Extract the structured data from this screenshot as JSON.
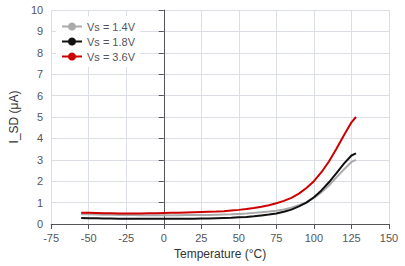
{
  "chart_data": {
    "type": "line",
    "xlabel": "Temperature (°C)",
    "ylabel": "I_SD (μA)",
    "xlim": [
      -75,
      150
    ],
    "ylim": [
      0,
      10
    ],
    "xticks": [
      -75,
      -50,
      -25,
      0,
      25,
      50,
      75,
      100,
      125,
      150
    ],
    "yticks": [
      0,
      1,
      2,
      3,
      4,
      5,
      6,
      7,
      8,
      9,
      10
    ],
    "x": [
      -55,
      -50,
      -45,
      -40,
      -35,
      -30,
      -25,
      -20,
      -15,
      -10,
      -5,
      0,
      5,
      10,
      15,
      20,
      25,
      30,
      35,
      40,
      45,
      50,
      55,
      60,
      65,
      70,
      75,
      80,
      85,
      90,
      95,
      100,
      105,
      110,
      115,
      120,
      125,
      128
    ],
    "series": [
      {
        "name": "Vs = 1.4V",
        "color": "#aaaaaa",
        "values": [
          0.46,
          0.45,
          0.44,
          0.43,
          0.43,
          0.42,
          0.42,
          0.42,
          0.41,
          0.41,
          0.41,
          0.41,
          0.41,
          0.41,
          0.42,
          0.42,
          0.42,
          0.42,
          0.43,
          0.44,
          0.45,
          0.47,
          0.49,
          0.52,
          0.55,
          0.58,
          0.62,
          0.68,
          0.76,
          0.88,
          1.02,
          1.22,
          1.48,
          1.8,
          2.18,
          2.55,
          2.9,
          3.0
        ]
      },
      {
        "name": "Vs = 1.8V",
        "color": "#111111",
        "values": [
          0.28,
          0.27,
          0.27,
          0.26,
          0.26,
          0.25,
          0.25,
          0.25,
          0.25,
          0.25,
          0.25,
          0.25,
          0.25,
          0.25,
          0.25,
          0.25,
          0.26,
          0.26,
          0.27,
          0.28,
          0.29,
          0.31,
          0.33,
          0.36,
          0.4,
          0.44,
          0.49,
          0.57,
          0.67,
          0.82,
          1.0,
          1.25,
          1.57,
          1.95,
          2.38,
          2.82,
          3.2,
          3.3
        ]
      },
      {
        "name": "Vs = 3.6V",
        "color": "#cc0000",
        "values": [
          0.53,
          0.52,
          0.51,
          0.5,
          0.5,
          0.49,
          0.49,
          0.49,
          0.49,
          0.5,
          0.5,
          0.51,
          0.52,
          0.53,
          0.54,
          0.55,
          0.56,
          0.57,
          0.58,
          0.6,
          0.63,
          0.66,
          0.7,
          0.75,
          0.81,
          0.88,
          0.97,
          1.08,
          1.22,
          1.42,
          1.68,
          2.0,
          2.42,
          2.92,
          3.52,
          4.15,
          4.75,
          5.0
        ]
      }
    ],
    "grid": true,
    "legend": "upper left"
  }
}
